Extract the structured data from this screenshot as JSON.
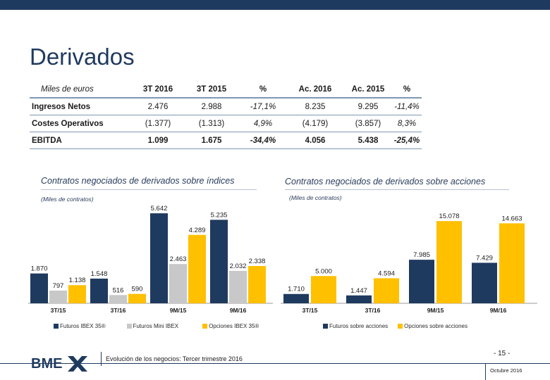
{
  "slide": {
    "title": "Derivados",
    "footer_text": "Evolución de los negocios: Tercer trimestre 2016",
    "page_number": "- 15 -",
    "date": "Octubre 2016",
    "logo_text": "BME"
  },
  "colors": {
    "navy": "#1f3a5f",
    "gray": "#c8c8c8",
    "gold": "#ffc000"
  },
  "table": {
    "headers": [
      "Miles de euros",
      "3T 2016",
      "3T 2015",
      "%",
      "Ac. 2016",
      "Ac. 2015",
      "%"
    ],
    "rows": [
      [
        "Ingresos Netos",
        "2.476",
        "2.988",
        "-17,1%",
        "8.235",
        "9.295",
        "-11,4%"
      ],
      [
        "Costes Operativos",
        "(1.377)",
        "(1.313)",
        "4,9%",
        "(4.179)",
        "(3.857)",
        "8,3%"
      ],
      [
        "EBITDA",
        "1.099",
        "1.675",
        "-34,4%",
        "4.056",
        "5.438",
        "-25,4%"
      ]
    ]
  },
  "chart_data": [
    {
      "type": "bar",
      "title": "Contratos negociados de derivados sobre índices",
      "unit": "(Miles de contratos)",
      "categories": [
        "3T/15",
        "3T/16",
        "9M/15",
        "9M/16"
      ],
      "series": [
        {
          "name": "Futuros IBEX 35®",
          "labels": [
            "1.870",
            "1.548",
            "5.642",
            "5.235"
          ],
          "values": [
            1870,
            1548,
            5642,
            5235
          ]
        },
        {
          "name": "Futuros Mini IBEX",
          "labels": [
            "797",
            "516",
            "2.463",
            "2.032"
          ],
          "values": [
            797,
            516,
            2463,
            2032
          ]
        },
        {
          "name": "Opciones IBEX 35®",
          "labels": [
            "1.138",
            "590",
            "4.289",
            "2.338"
          ],
          "values": [
            1138,
            590,
            4289,
            2338
          ]
        }
      ],
      "ylim": [
        0,
        6000
      ]
    },
    {
      "type": "bar",
      "title": "Contratos negociados de derivados sobre acciones",
      "unit": "(Miles de contratos)",
      "categories": [
        "3T/15",
        "3T/16",
        "9M/15",
        "9M/16"
      ],
      "series": [
        {
          "name": "Futuros sobre acciones",
          "labels": [
            "1.710",
            "1.447",
            "7.985",
            "7.429"
          ],
          "values": [
            1710,
            1447,
            7985,
            7429
          ]
        },
        {
          "name": "Opciones sobre acciones",
          "labels": [
            "5.000",
            "4.594",
            "15.078",
            "14.663"
          ],
          "values": [
            5000,
            4594,
            15078,
            14663
          ]
        }
      ],
      "ylim": [
        0,
        16000
      ]
    }
  ]
}
